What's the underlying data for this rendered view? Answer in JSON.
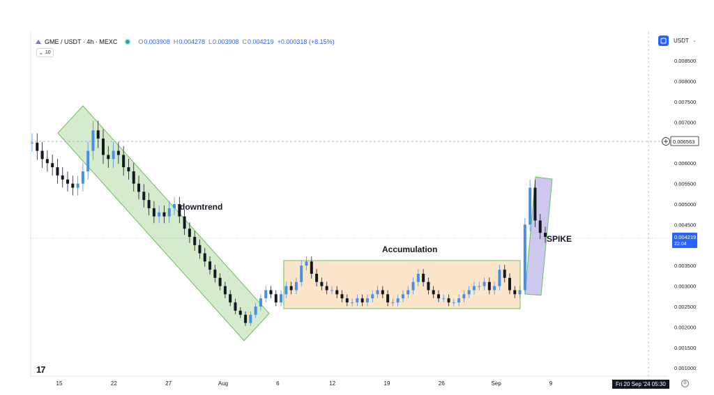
{
  "header": {
    "symbol": "GME / USDT · 4h · MEXC",
    "open_label": "O",
    "open": "0.003908",
    "high_label": "H",
    "high": "0.004278",
    "low_label": "L",
    "low": "0.003908",
    "close_label": "C",
    "close": "0.004219",
    "change": "+0.000318 (+8.15%)",
    "interval_value": "10"
  },
  "currency": {
    "label": "USDT"
  },
  "colors": {
    "candle_up": "#4a90e2",
    "candle_down": "#131722",
    "downtrend_fill": "#cfe8c4",
    "downtrend_stroke": "#6cbf5a",
    "accumulation_fill": "#fbe3c6",
    "spike_fill": "#c9c2ec",
    "price_line": "#2962ff"
  },
  "footer": {
    "date_badge": "Fri 20 Sep '24   05:30",
    "tv_logo": "17"
  },
  "chart_data": {
    "type": "candlestick",
    "symbol": "GME / USDT",
    "timeframe": "4h",
    "x_ticks": [
      "15",
      "22",
      "27",
      "Aug",
      "6",
      "12",
      "19",
      "26",
      "Sep",
      "9"
    ],
    "y_ticks": [
      "0.008500",
      "0.008000",
      "0.007500",
      "0.007000",
      "0.006500",
      "0.006000",
      "0.005500",
      "0.005000",
      "0.004500",
      "0.004000",
      "0.003500",
      "0.003000",
      "0.002500",
      "0.002000",
      "0.001500",
      "0.001000"
    ],
    "ylim": [
      0.0008,
      0.0092
    ],
    "grid": false,
    "current_price": {
      "label": "0.004219",
      "countdown": "22:04",
      "value": 0.004219
    },
    "crosshair_price": {
      "label": "0.006563",
      "value": 0.006563
    },
    "annotations": [
      {
        "label": "downtrend"
      },
      {
        "label": "Accumulation"
      },
      {
        "label": "SPIKE"
      }
    ],
    "series": [
      {
        "values": [
          0.0065,
          0.0063,
          0.0061,
          0.006,
          0.0059,
          0.0057,
          0.0056,
          0.0055,
          0.0054,
          0.0055,
          0.0058,
          0.0063,
          0.0068,
          0.0066,
          0.0062,
          0.0061,
          0.0063,
          0.0062,
          0.0059,
          0.0058,
          0.0055,
          0.0053,
          0.0051,
          0.0049,
          0.0047,
          0.0048,
          0.0047,
          0.0049,
          0.005,
          0.0047,
          0.0044,
          0.0042,
          0.004,
          0.0038,
          0.0036,
          0.0034,
          0.0032,
          0.003,
          0.0028,
          0.0026,
          0.0024,
          0.0023,
          0.0021,
          0.0023,
          0.0025,
          0.0027,
          0.0029,
          0.0028,
          0.0026,
          0.0028,
          0.003,
          0.0029,
          0.0031,
          0.0035,
          0.0036,
          0.0033,
          0.0031,
          0.003,
          0.0029,
          0.0029,
          0.0028,
          0.0027,
          0.0026,
          0.0026,
          0.0027,
          0.0026,
          0.0027,
          0.0028,
          0.0029,
          0.0028,
          0.0026,
          0.0026,
          0.0027,
          0.0028,
          0.0029,
          0.0031,
          0.0033,
          0.0031,
          0.0029,
          0.0028,
          0.0027,
          0.0027,
          0.0026,
          0.0026,
          0.0027,
          0.0028,
          0.0029,
          0.003,
          0.003,
          0.0031,
          0.0029,
          0.003,
          0.0034,
          0.0032,
          0.0029,
          0.0028,
          0.0029,
          0.0045,
          0.0054,
          0.0046,
          0.0043,
          0.0042
        ]
      }
    ]
  }
}
